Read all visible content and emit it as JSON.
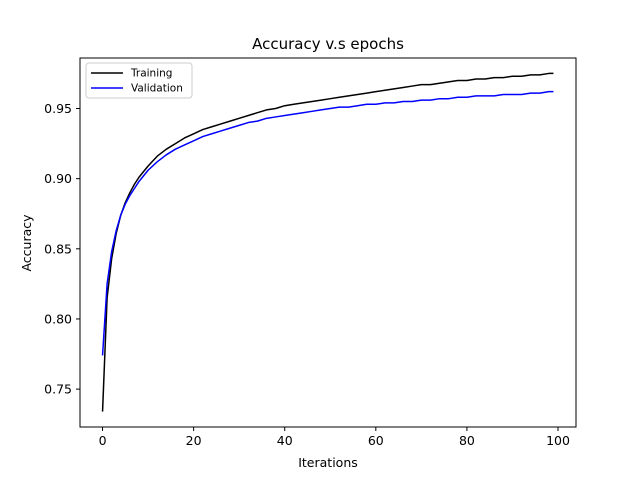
{
  "chart_data": {
    "type": "line",
    "title": "Accuracy v.s epochs",
    "xlabel": "Iterations",
    "ylabel": "Accuracy",
    "xlim": [
      -4.95,
      103.95
    ],
    "ylim": [
      0.723,
      0.986
    ],
    "xticks": [
      0,
      20,
      40,
      60,
      80,
      100
    ],
    "yticks": [
      0.75,
      0.8,
      0.85,
      0.9,
      0.95
    ],
    "ytick_labels": [
      "0.75",
      "0.80",
      "0.85",
      "0.90",
      "0.95"
    ],
    "grid": false,
    "legend_position": "top-left",
    "series": [
      {
        "name": "Training",
        "color": "#000000",
        "x": [
          0,
          1,
          2,
          3,
          4,
          5,
          6,
          7,
          8,
          9,
          10,
          12,
          14,
          16,
          18,
          20,
          22,
          24,
          26,
          28,
          30,
          32,
          34,
          36,
          38,
          40,
          42,
          44,
          46,
          48,
          50,
          52,
          54,
          56,
          58,
          60,
          62,
          64,
          66,
          68,
          70,
          72,
          74,
          76,
          78,
          80,
          82,
          84,
          86,
          88,
          90,
          92,
          94,
          96,
          98,
          99
        ],
        "y": [
          0.734,
          0.815,
          0.843,
          0.861,
          0.874,
          0.883,
          0.89,
          0.896,
          0.901,
          0.905,
          0.909,
          0.916,
          0.921,
          0.925,
          0.929,
          0.932,
          0.935,
          0.937,
          0.939,
          0.941,
          0.943,
          0.945,
          0.947,
          0.949,
          0.95,
          0.952,
          0.953,
          0.954,
          0.955,
          0.956,
          0.957,
          0.958,
          0.959,
          0.96,
          0.961,
          0.962,
          0.963,
          0.964,
          0.965,
          0.966,
          0.967,
          0.967,
          0.968,
          0.969,
          0.97,
          0.97,
          0.971,
          0.971,
          0.972,
          0.972,
          0.973,
          0.973,
          0.974,
          0.974,
          0.975,
          0.975
        ]
      },
      {
        "name": "Validation",
        "color": "#0000ff",
        "x": [
          0,
          1,
          2,
          3,
          4,
          5,
          6,
          7,
          8,
          9,
          10,
          12,
          14,
          16,
          18,
          20,
          22,
          24,
          26,
          28,
          30,
          32,
          34,
          36,
          38,
          40,
          42,
          44,
          46,
          48,
          50,
          52,
          54,
          56,
          58,
          60,
          62,
          64,
          66,
          68,
          70,
          72,
          74,
          76,
          78,
          80,
          82,
          84,
          86,
          88,
          90,
          92,
          94,
          96,
          98,
          99
        ],
        "y": [
          0.774,
          0.825,
          0.848,
          0.863,
          0.874,
          0.882,
          0.888,
          0.893,
          0.898,
          0.902,
          0.906,
          0.912,
          0.917,
          0.921,
          0.924,
          0.927,
          0.93,
          0.932,
          0.934,
          0.936,
          0.938,
          0.94,
          0.941,
          0.943,
          0.944,
          0.945,
          0.946,
          0.947,
          0.948,
          0.949,
          0.95,
          0.951,
          0.951,
          0.952,
          0.953,
          0.953,
          0.954,
          0.954,
          0.955,
          0.955,
          0.956,
          0.956,
          0.957,
          0.957,
          0.958,
          0.958,
          0.959,
          0.959,
          0.959,
          0.96,
          0.96,
          0.96,
          0.961,
          0.961,
          0.962,
          0.962
        ]
      }
    ]
  }
}
